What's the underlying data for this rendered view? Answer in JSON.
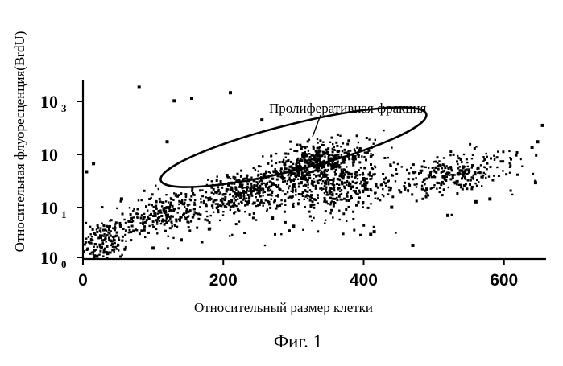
{
  "chart_data": {
    "type": "scatter",
    "xlabel": "Относительный размер клетки",
    "ylabel": "Относительная флуоресценция(BrdU)",
    "x_ticks": [
      "0",
      "200",
      "400",
      "600"
    ],
    "y_ticks": [
      {
        "main": "10",
        "sub": "0"
      },
      {
        "main": "10",
        "sub": "1"
      },
      {
        "main": "10",
        "sub": ""
      },
      {
        "main": "10",
        "sub": "3"
      }
    ],
    "xlim": [
      0,
      660
    ],
    "ylim": [
      0,
      3.2
    ],
    "y_scale": "log",
    "annotation": "Пролиферативная фракция",
    "caption": "Фиг. 1",
    "point_color": "#000000",
    "clusters": [
      {
        "x_center": 30,
        "y_center": 0.35,
        "x_spread": 30,
        "y_spread": 0.28,
        "count": 170
      },
      {
        "x_center": 120,
        "y_center": 0.85,
        "x_spread": 60,
        "y_spread": 0.3,
        "count": 260
      },
      {
        "x_center": 230,
        "y_center": 1.25,
        "x_spread": 60,
        "y_spread": 0.28,
        "count": 330
      },
      {
        "x_center": 330,
        "y_center": 1.75,
        "x_spread": 60,
        "y_spread": 0.3,
        "count": 520
      },
      {
        "x_center": 360,
        "y_center": 1.3,
        "x_spread": 70,
        "y_spread": 0.3,
        "count": 280
      },
      {
        "x_center": 530,
        "y_center": 1.55,
        "x_spread": 70,
        "y_spread": 0.3,
        "count": 280
      },
      {
        "x_center": 330,
        "y_center": 1.0,
        "x_spread": 150,
        "y_spread": 0.6,
        "count": 120
      }
    ],
    "outliers": [
      [
        80,
        3.15
      ],
      [
        130,
        2.9
      ],
      [
        155,
        2.95
      ],
      [
        210,
        3.05
      ],
      [
        255,
        2.55
      ],
      [
        120,
        2.15
      ],
      [
        5,
        1.6
      ],
      [
        15,
        1.75
      ],
      [
        55,
        1.1
      ],
      [
        180,
        0.55
      ],
      [
        270,
        0.75
      ],
      [
        300,
        0.6
      ],
      [
        410,
        0.45
      ],
      [
        415,
        0.5
      ],
      [
        440,
        0.95
      ],
      [
        560,
        1.05
      ],
      [
        580,
        1.1
      ],
      [
        640,
        2.05
      ],
      [
        648,
        2.15
      ],
      [
        655,
        2.45
      ],
      [
        645,
        1.4
      ],
      [
        470,
        0.25
      ],
      [
        520,
        0.8
      ],
      [
        100,
        0.2
      ],
      [
        140,
        0.35
      ],
      [
        20,
        0.05
      ],
      [
        35,
        0.1
      ],
      [
        60,
        0.18
      ]
    ],
    "proliferative_ellipse": {
      "cx": 300,
      "cy": 2.05,
      "rx": 195,
      "ry": 0.42,
      "rotation_deg": -14
    }
  }
}
